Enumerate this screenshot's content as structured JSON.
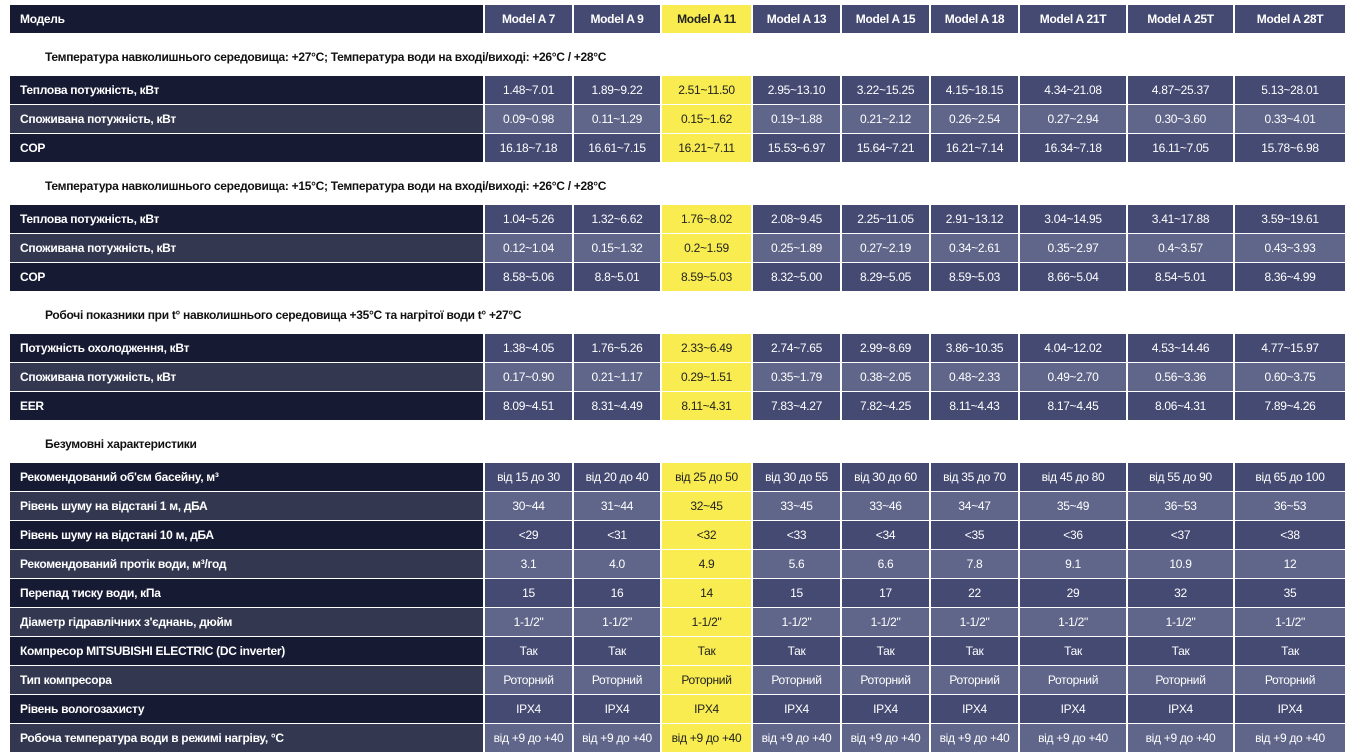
{
  "header": {
    "label": "Модель",
    "models": [
      "Model A 7",
      "Model A 9",
      "Model A 11",
      "Model A 13",
      "Model A 15",
      "Model A 18",
      "Model A 21T",
      "Model A 25T",
      "Model A 28T"
    ]
  },
  "highlight_color": "#f8ec50",
  "highlighted_model": "Model A 11",
  "sections": [
    {
      "title": "Температура навколишнього середовища: +27°C; Температура води на вході/виході: +26°C / +28°C",
      "rows": [
        {
          "label": "Теплова потужність, кВт",
          "values": [
            "1.48~7.01",
            "1.89~9.22",
            "2.51~11.50",
            "2.95~13.10",
            "3.22~15.25",
            "4.15~18.15",
            "4.34~21.08",
            "4.87~25.37",
            "5.13~28.01"
          ]
        },
        {
          "label": "Споживана потужність, кВт",
          "values": [
            "0.09~0.98",
            "0.11~1.29",
            "0.15~1.62",
            "0.19~1.88",
            "0.21~2.12",
            "0.26~2.54",
            "0.27~2.94",
            "0.30~3.60",
            "0.33~4.01"
          ]
        },
        {
          "label": "COP",
          "values": [
            "16.18~7.18",
            "16.61~7.15",
            "16.21~7.11",
            "15.53~6.97",
            "15.64~7.21",
            "16.21~7.14",
            "16.34~7.18",
            "16.11~7.05",
            "15.78~6.98"
          ]
        }
      ]
    },
    {
      "title": "Температура навколишнього середовища: +15°C; Температура води на вході/виході: +26°C / +28°C",
      "rows": [
        {
          "label": "Теплова потужність, кВт",
          "values": [
            "1.04~5.26",
            "1.32~6.62",
            "1.76~8.02",
            "2.08~9.45",
            "2.25~11.05",
            "2.91~13.12",
            "3.04~14.95",
            "3.41~17.88",
            "3.59~19.61"
          ]
        },
        {
          "label": "Споживана потужність, кВт",
          "values": [
            "0.12~1.04",
            "0.15~1.32",
            "0.2~1.59",
            "0.25~1.89",
            "0.27~2.19",
            "0.34~2.61",
            "0.35~2.97",
            "0.4~3.57",
            "0.43~3.93"
          ]
        },
        {
          "label": "COP",
          "values": [
            "8.58~5.06",
            "8.8~5.01",
            "8.59~5.03",
            "8.32~5.00",
            "8.29~5.05",
            "8.59~5.03",
            "8.66~5.04",
            "8.54~5.01",
            "8.36~4.99"
          ]
        }
      ]
    },
    {
      "title": "Робочі показники при t° навколишнього середовища +35°C та нагрітої води t° +27°C",
      "rows": [
        {
          "label": "Потужність охолодження, кВт",
          "values": [
            "1.38~4.05",
            "1.76~5.26",
            "2.33~6.49",
            "2.74~7.65",
            "2.99~8.69",
            "3.86~10.35",
            "4.04~12.02",
            "4.53~14.46",
            "4.77~15.97"
          ]
        },
        {
          "label": "Споживана потужність, кВт",
          "values": [
            "0.17~0.90",
            "0.21~1.17",
            "0.29~1.51",
            "0.35~1.79",
            "0.38~2.05",
            "0.48~2.33",
            "0.49~2.70",
            "0.56~3.36",
            "0.60~3.75"
          ]
        },
        {
          "label": "EER",
          "values": [
            "8.09~4.51",
            "8.31~4.49",
            "8.11~4.31",
            "7.83~4.27",
            "7.82~4.25",
            "8.11~4.43",
            "8.17~4.45",
            "8.06~4.31",
            "7.89~4.26"
          ]
        }
      ]
    },
    {
      "title": "Безумовні характеристики",
      "rows": [
        {
          "label": "Рекомендований об'єм басейну, м³",
          "values": [
            "від 15 до 30",
            "від 20 до 40",
            "від 25 до 50",
            "від 30 до 55",
            "від 30 до 60",
            "від 35 до 70",
            "від 45 до 80",
            "від 55 до 90",
            "від 65 до 100"
          ]
        },
        {
          "label": "Рівень шуму на відстані 1 м, дБА",
          "values": [
            "30~44",
            "31~44",
            "32~45",
            "33~45",
            "33~46",
            "34~47",
            "35~49",
            "36~53",
            "36~53"
          ]
        },
        {
          "label": "Рівень шуму на відстані 10 м, дБА",
          "values": [
            "<29",
            "<31",
            "<32",
            "<33",
            "<34",
            "<35",
            "<36",
            "<37",
            "<38"
          ]
        },
        {
          "label": "Рекомендований протік води, м³/год",
          "values": [
            "3.1",
            "4.0",
            "4.9",
            "5.6",
            "6.6",
            "7.8",
            "9.1",
            "10.9",
            "12"
          ]
        },
        {
          "label": "Перепад тиску води, кПа",
          "values": [
            "15",
            "16",
            "14",
            "15",
            "17",
            "22",
            "29",
            "32",
            "35"
          ]
        },
        {
          "label": "Діаметр гідравлічних з'єднань, дюйм",
          "values": [
            "1-1/2\"",
            "1-1/2\"",
            "1-1/2\"",
            "1-1/2\"",
            "1-1/2\"",
            "1-1/2\"",
            "1-1/2\"",
            "1-1/2\"",
            "1-1/2\""
          ]
        },
        {
          "label": "Компресор MITSUBISHI ELECTRIC (DC inverter)",
          "values": [
            "Так",
            "Так",
            "Так",
            "Так",
            "Так",
            "Так",
            "Так",
            "Так",
            "Так"
          ]
        },
        {
          "label": "Тип компресора",
          "values": [
            "Роторний",
            "Роторний",
            "Роторний",
            "Роторний",
            "Роторний",
            "Роторний",
            "Роторний",
            "Роторний",
            "Роторний"
          ]
        },
        {
          "label": "Рівень вологозахисту",
          "values": [
            "IPX4",
            "IPX4",
            "IPX4",
            "IPX4",
            "IPX4",
            "IPX4",
            "IPX4",
            "IPX4",
            "IPX4"
          ]
        },
        {
          "label": "Робоча температура води в режимі нагріву, °C",
          "values": [
            "від +9 до +40",
            "від +9 до +40",
            "від +9 до +40",
            "від +9 до +40",
            "від +9 до +40",
            "від +9 до +40",
            "від +9 до +40",
            "від +9 до +40",
            "від +9 до +40"
          ]
        }
      ]
    }
  ]
}
